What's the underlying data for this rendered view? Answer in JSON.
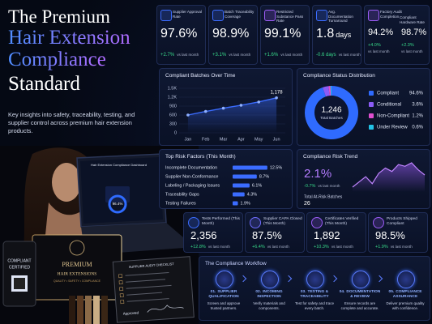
{
  "header": {
    "title_lines": [
      "The Premium",
      "Hair Extension",
      "Compliance",
      "Standard"
    ],
    "subtitle": "Key insights into safety, traceability, testing, and supplier control across premium hair extension products."
  },
  "kpis": [
    {
      "label": "Supplier Approval Rate",
      "value": "97.6%",
      "change": "+2.7%",
      "note": "vs last month"
    },
    {
      "label": "Batch Traceability Coverage",
      "value": "98.9%",
      "change": "+3.1%",
      "note": "vs last month"
    },
    {
      "label": "Restricted Substance Pass Rate",
      "value": "99.1%",
      "change": "+1.6%",
      "note": "vs last month"
    },
    {
      "label": "Avg. Documentation Turnaround",
      "value": "1.8",
      "unit": "days",
      "change": "-0.6 days",
      "note": "vs last month"
    },
    {
      "label": "Factory Audit Completion",
      "value": "94.2%",
      "change": "+4.0%",
      "note": "vs last month"
    },
    {
      "label": "Compliant Hardware Rate",
      "value": "98.7%",
      "change": "+2.3%",
      "note": "vs last month"
    }
  ],
  "chart_data": [
    {
      "type": "line",
      "title": "Compliant Batches Over Time",
      "categories": [
        "Jan",
        "Feb",
        "Mar",
        "Apr",
        "May",
        "Jun"
      ],
      "values": [
        600,
        720,
        830,
        930,
        1040,
        1178
      ],
      "value_labels": [
        null,
        null,
        null,
        null,
        null,
        "1,178"
      ],
      "color": "#3b6cff",
      "ylim": [
        0,
        1500
      ],
      "yticks": [
        0,
        300,
        600,
        900,
        {
          "value": 1200,
          "label": "1.2K"
        },
        {
          "value": 1500,
          "label": "1.5K"
        }
      ],
      "grid": true
    },
    {
      "type": "pie",
      "title": "Compliance Status Distribution",
      "center_value": "1,246",
      "center_label": "Total Batches",
      "categories": [
        "Compliant",
        "Conditional",
        "Non-Compliant",
        "Under Review"
      ],
      "values": [
        94.6,
        3.6,
        1.2,
        0.6
      ],
      "value_labels": [
        "94.6%",
        "3.6%",
        "1.2%",
        "0.6%"
      ],
      "colors": [
        "#2f6bff",
        "#8b5cf6",
        "#e04fd0",
        "#22c3e6"
      ]
    },
    {
      "type": "bar",
      "title": "Top Risk Factors (This Month)",
      "categories": [
        "Incomplete Documentation",
        "Supplier Non-Conformance",
        "Labeling / Packaging Issues",
        "Traceability Gaps",
        "Testing Failures"
      ],
      "values": [
        12.5,
        8.7,
        6.1,
        4.3,
        1.9
      ],
      "value_labels": [
        "12.5%",
        "8.7%",
        "6.1%",
        "4.3%",
        "1.9%"
      ],
      "color": "#3b6cff",
      "xlim": [
        0,
        14
      ]
    },
    {
      "type": "area",
      "title": "Compliance Risk Trend",
      "headline": "2.1%",
      "change": "-0.7%",
      "note": "vs last month",
      "total_label": "Total At-Risk Batches",
      "total": "26",
      "color": "#9b5cf6",
      "values": [
        1.6,
        1.9,
        2.2,
        1.8,
        2.4,
        2.7,
        2.5,
        2.9,
        2.8,
        3.0,
        2.6,
        2.3
      ]
    }
  ],
  "stats": [
    {
      "label": "Tests Performed (This Month)",
      "value": "2,356",
      "change": "+12.8%",
      "note": "vs last month"
    },
    {
      "label": "Supplier CAPA Closed (This Month)",
      "value": "87.5%",
      "change": "+6.4%",
      "note": "vs last month"
    },
    {
      "label": "Certificates Verified (This Month)",
      "value": "1,892",
      "change": "+10.3%",
      "note": "vs last month"
    },
    {
      "label": "Products Shipped Compliant",
      "value": "98.5%",
      "change": "+1.9%",
      "note": "vs last month"
    }
  ],
  "workflow": {
    "title": "The Compliance Workflow",
    "steps": [
      {
        "number": "01.",
        "title": "SUPPLIER QUALIFICATION",
        "text": "Screen and approve trusted partners."
      },
      {
        "number": "02.",
        "title": "INCOMING INSPECTION",
        "text": "Verify materials and components."
      },
      {
        "number": "03.",
        "title": "TESTING & TRACEABILITY",
        "text": "Test for safety and trace every batch."
      },
      {
        "number": "04.",
        "title": "DOCUMENTATION & REVIEW",
        "text": "Ensure records are complete and accurate."
      },
      {
        "number": "05.",
        "title": "COMPLIANCE ASSURANCE",
        "text": "Deliver premium quality with confidence."
      }
    ]
  },
  "image": {
    "dashboard_title": "Hair Extension Compliance Dashboard",
    "dashboard_score": "96.4%",
    "box_lines": [
      "PREMIUM",
      "HAIR EXTENSIONS"
    ],
    "box_tagline": "QUALITY • SAFETY • COMPLIANCE",
    "tag_lines": [
      "COMPLIANT",
      "CERTIFIED"
    ],
    "checklist_title": "SUPPLIER AUDIT CHECKLIST",
    "signature": "Approved"
  }
}
